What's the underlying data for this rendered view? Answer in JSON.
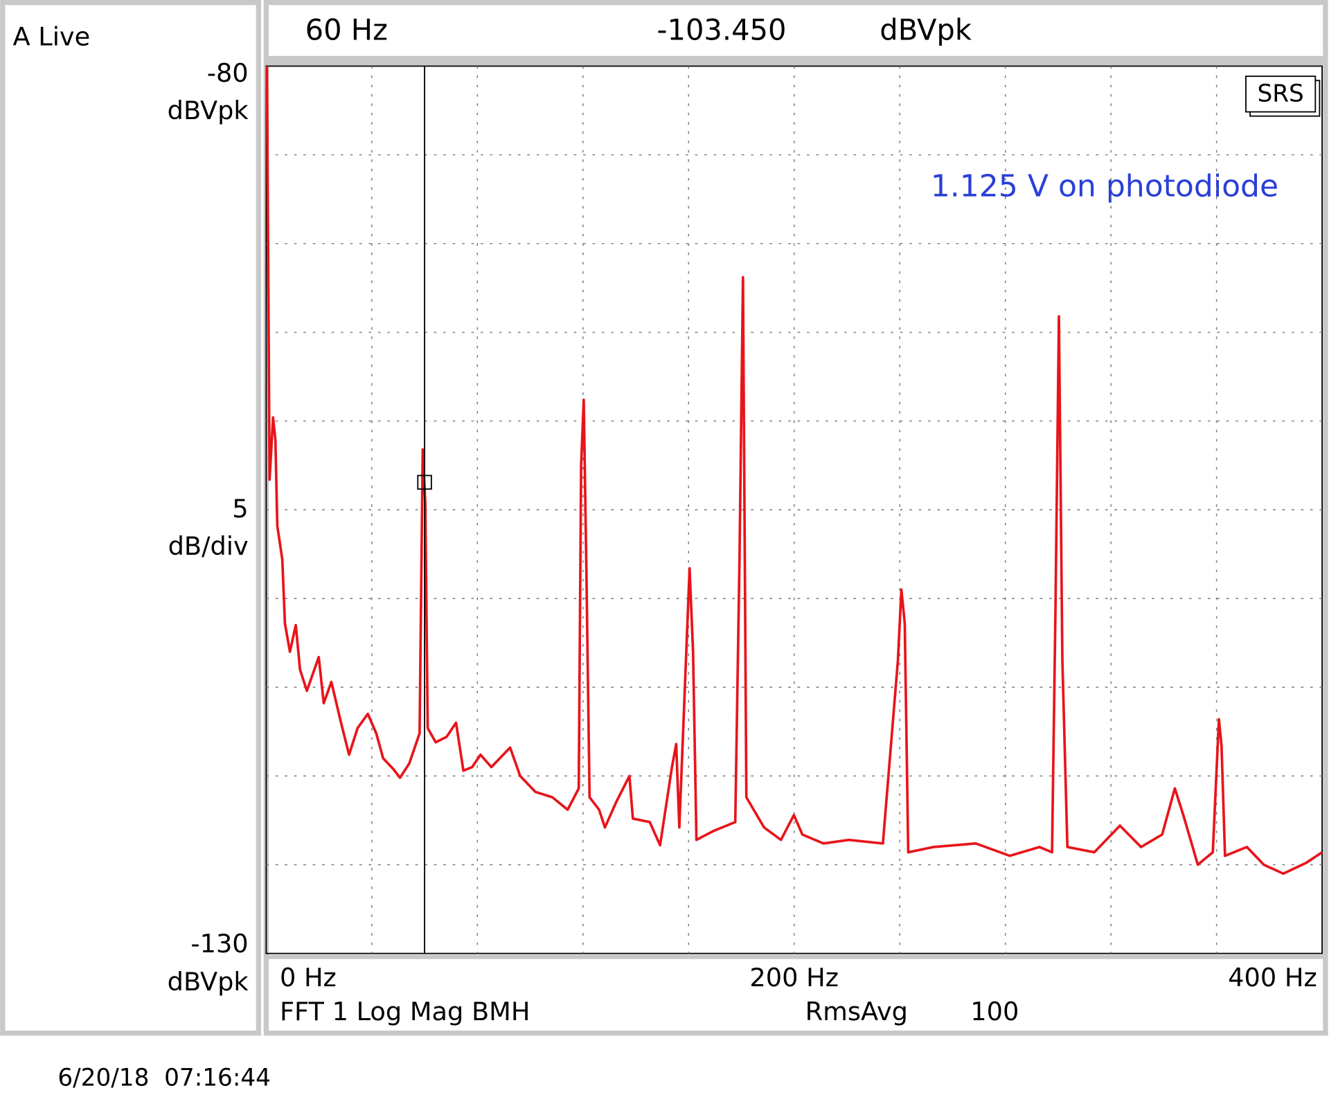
{
  "chart_data": {
    "type": "line",
    "title": "A Live",
    "color": "#e8141a",
    "x": [
      0.3,
      1.3,
      2.6,
      3.5,
      4.2,
      6.1,
      7.1,
      9.0,
      11.2,
      12.8,
      15.4,
      19.9,
      21.8,
      24.7,
      28.2,
      31.4,
      34.6,
      38.5,
      41.7,
      44.3,
      48.1,
      50.7,
      54.2,
      58.1,
      59.3,
      60.3,
      61.2,
      64.2,
      68.3,
      71.9,
      74.7,
      78.0,
      81.2,
      85.3,
      92.4,
      96.2,
      102.0,
      108.4,
      114.2,
      118.4,
      119.3,
      120.3,
      121.3,
      122.5,
      126.1,
      128.3,
      132.5,
      137.6,
      138.9,
      145.3,
      149.2,
      153.7,
      155.3,
      156.5,
      160.4,
      161.7,
      163.0,
      169.4,
      177.7,
      179.3,
      180.6,
      181.9,
      188.6,
      195.0,
      199.9,
      203.1,
      211.1,
      220.7,
      233.6,
      239.3,
      240.6,
      241.9,
      243.2,
      252.8,
      268.8,
      281.7,
      292.9,
      297.7,
      299.0,
      300.3,
      301.6,
      303.5,
      313.7,
      323.4,
      331.4,
      339.4,
      344.2,
      347.4,
      352.9,
      358.6,
      360.9,
      361.9,
      363.2,
      371.5,
      377.9,
      385.3,
      393.9,
      400.0
    ],
    "values": [
      -80.0,
      -103.3,
      -99.8,
      -101.1,
      -105.9,
      -107.8,
      -111.4,
      -113.0,
      -111.5,
      -114.0,
      -115.2,
      -113.3,
      -115.9,
      -114.7,
      -116.9,
      -118.8,
      -117.3,
      -116.5,
      -117.6,
      -119.0,
      -119.6,
      -120.1,
      -119.3,
      -117.6,
      -101.6,
      -104.7,
      -117.3,
      -118.1,
      -117.8,
      -117.0,
      -119.7,
      -119.5,
      -118.8,
      -119.5,
      -118.4,
      -120.0,
      -120.9,
      -121.2,
      -121.9,
      -120.7,
      -102.5,
      -98.8,
      -108.3,
      -121.2,
      -121.9,
      -122.9,
      -121.5,
      -120.0,
      -122.4,
      -122.6,
      -123.9,
      -119.5,
      -118.2,
      -122.9,
      -108.3,
      -113.0,
      -123.6,
      -123.1,
      -122.6,
      -107.8,
      -91.9,
      -121.2,
      -122.9,
      -123.6,
      -122.2,
      -123.3,
      -123.8,
      -123.6,
      -123.8,
      -113.5,
      -109.5,
      -111.4,
      -124.3,
      -124.0,
      -123.8,
      -124.5,
      -124.0,
      -124.3,
      -110.4,
      -94.1,
      -113.5,
      -124.0,
      -124.3,
      -122.8,
      -124.0,
      -123.3,
      -120.7,
      -122.2,
      -125.0,
      -124.3,
      -116.8,
      -118.3,
      -124.5,
      -124.0,
      -125.0,
      -125.5,
      -124.9,
      -124.3
    ],
    "xlim": [
      0,
      400
    ],
    "xticks": [
      {
        "value": 0,
        "label": "0 Hz"
      },
      {
        "value": 200,
        "label": "200 Hz"
      },
      {
        "value": 400,
        "label": "400 Hz"
      }
    ],
    "xgrid_step": 40,
    "ylim": [
      -130,
      -80
    ],
    "yticks": [
      -80,
      -130
    ],
    "y_unit_top": "dBVpk",
    "y_unit_bottom": "dBVpk",
    "y_per_div": 5,
    "y_per_div_label": "dB/div",
    "grid": true,
    "cursor": {
      "x": {
        "value": 60,
        "label": "60 Hz"
      },
      "y": {
        "value": -103.45,
        "label": "-103.450"
      },
      "unit": "dBVpk"
    },
    "measurement": "FFT 1 Log Mag BMH",
    "averaging": {
      "label": "RmsAvg",
      "count": 100
    },
    "logo": "SRS",
    "annotation": "1.125 V on photodiode",
    "timestamp": "6/20/18  07:16:44"
  }
}
